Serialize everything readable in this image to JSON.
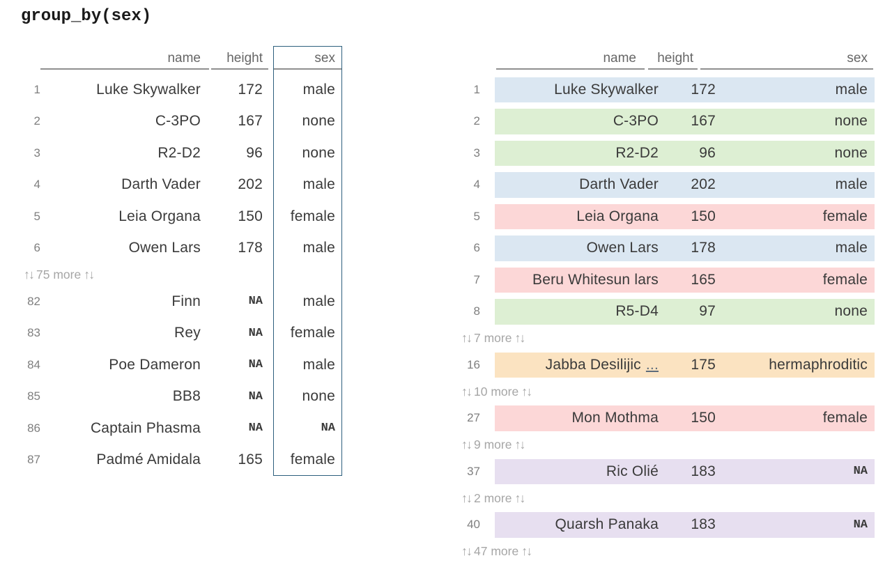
{
  "title": "group_by(sex)",
  "icons": {
    "updown_arrows": "↑↓"
  },
  "colors": {
    "male": "#dbe7f2",
    "none": "#ddefd3",
    "female": "#fcd7d7",
    "hermaphroditic": "#fbe3c1",
    "na": "#e7dff0",
    "sex_box_border": "#2d5f7d"
  },
  "left_table": {
    "columns": [
      "name",
      "height",
      "sex"
    ],
    "rows": [
      {
        "num": "1",
        "name": "Luke Skywalker",
        "height": "172",
        "sex": "male"
      },
      {
        "num": "2",
        "name": "C-3PO",
        "height": "167",
        "sex": "none"
      },
      {
        "num": "3",
        "name": "R2-D2",
        "height": "96",
        "sex": "none"
      },
      {
        "num": "4",
        "name": "Darth Vader",
        "height": "202",
        "sex": "male"
      },
      {
        "num": "5",
        "name": "Leia Organa",
        "height": "150",
        "sex": "female"
      },
      {
        "num": "6",
        "name": "Owen Lars",
        "height": "178",
        "sex": "male"
      },
      {
        "num": "82",
        "name": "Finn",
        "height": "NA",
        "sex": "male"
      },
      {
        "num": "83",
        "name": "Rey",
        "height": "NA",
        "sex": "female"
      },
      {
        "num": "84",
        "name": "Poe Dameron",
        "height": "NA",
        "sex": "male"
      },
      {
        "num": "85",
        "name": "BB8",
        "height": "NA",
        "sex": "none"
      },
      {
        "num": "86",
        "name": "Captain Phasma",
        "height": "NA",
        "sex": "NA"
      },
      {
        "num": "87",
        "name": "Padmé Amidala",
        "height": "165",
        "sex": "female"
      }
    ],
    "more_label": "75 more"
  },
  "right_table": {
    "columns": [
      "name",
      "height",
      "sex"
    ],
    "rows": [
      {
        "num": "1",
        "name": "Luke Skywalker",
        "height": "172",
        "sex": "male",
        "group": "male",
        "color": "#dbe7f2"
      },
      {
        "num": "2",
        "name": "C-3PO",
        "height": "167",
        "sex": "none",
        "group": "none",
        "color": "#ddefd3"
      },
      {
        "num": "3",
        "name": "R2-D2",
        "height": "96",
        "sex": "none",
        "group": "none",
        "color": "#ddefd3"
      },
      {
        "num": "4",
        "name": "Darth Vader",
        "height": "202",
        "sex": "male",
        "group": "male",
        "color": "#dbe7f2"
      },
      {
        "num": "5",
        "name": "Leia Organa",
        "height": "150",
        "sex": "female",
        "group": "female",
        "color": "#fcd7d7"
      },
      {
        "num": "6",
        "name": "Owen Lars",
        "height": "178",
        "sex": "male",
        "group": "male",
        "color": "#dbe7f2"
      },
      {
        "num": "7",
        "name": "Beru Whitesun lars",
        "height": "165",
        "sex": "female",
        "group": "female",
        "color": "#fcd7d7"
      },
      {
        "num": "8",
        "name": "R5-D4",
        "height": "97",
        "sex": "none",
        "group": "none",
        "color": "#ddefd3"
      },
      {
        "num": "16",
        "name": "Jabba Desilijic",
        "ellipsis": "...",
        "height": "175",
        "sex": "hermaphroditic",
        "group": "hermaphroditic",
        "color": "#fbe3c1"
      },
      {
        "num": "27",
        "name": "Mon Mothma",
        "height": "150",
        "sex": "female",
        "group": "female",
        "color": "#fcd7d7"
      },
      {
        "num": "37",
        "name": "Ric Olié",
        "height": "183",
        "sex": "NA",
        "group": "na",
        "color": "#e7dff0"
      },
      {
        "num": "40",
        "name": "Quarsh Panaka",
        "height": "183",
        "sex": "NA",
        "group": "na",
        "color": "#e7dff0"
      }
    ],
    "more_labels": [
      "7 more",
      "10 more",
      "9 more",
      "2 more",
      "47 more"
    ]
  }
}
